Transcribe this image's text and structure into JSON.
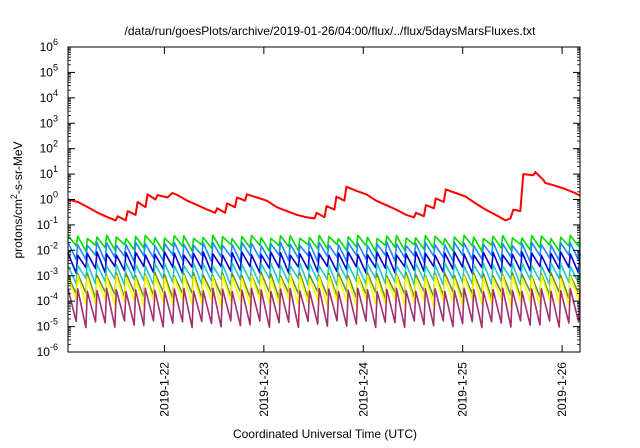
{
  "chart_data": {
    "type": "line",
    "title": "/data/run/goesPlots/archive/2019-01-26/04:00/flux/../flux/5daysMarsFluxes.txt",
    "xlabel": "Coordinated Universal Time (UTC)",
    "ylabel_base": "protons/cm",
    "ylabel_sup": "2",
    "ylabel_tail": "-s-sr-MeV",
    "xlim": [
      0,
      5.15
    ],
    "ylim_log10": [
      -6,
      6
    ],
    "yscale": "log",
    "y_ticks": [
      {
        "exp": -6,
        "label": "-6"
      },
      {
        "exp": -5,
        "label": "-5"
      },
      {
        "exp": -4,
        "label": "-4"
      },
      {
        "exp": -3,
        "label": "-3"
      },
      {
        "exp": -2,
        "label": "-2"
      },
      {
        "exp": -1,
        "label": "-1"
      },
      {
        "exp": 0,
        "label": "0"
      },
      {
        "exp": 1,
        "label": "1"
      },
      {
        "exp": 2,
        "label": "2"
      },
      {
        "exp": 3,
        "label": "3"
      },
      {
        "exp": 4,
        "label": "4"
      },
      {
        "exp": 5,
        "label": "5"
      },
      {
        "exp": 6,
        "label": "6"
      }
    ],
    "y_tick_base": "10",
    "x_ticks": [
      {
        "x": 0.97,
        "label": "2019-1-22"
      },
      {
        "x": 1.97,
        "label": "2019-1-23"
      },
      {
        "x": 2.97,
        "label": "2019-1-24"
      },
      {
        "x": 3.97,
        "label": "2019-1-25"
      },
      {
        "x": 4.97,
        "label": "2019-1-26"
      }
    ],
    "grid": false,
    "legend": "none",
    "series": [
      {
        "color": "#ff0000",
        "x": [
          0.0,
          0.1,
          0.2,
          0.3,
          0.4,
          0.48,
          0.5,
          0.58,
          0.6,
          0.68,
          0.7,
          0.78,
          0.8,
          0.88,
          0.9,
          1.0,
          1.05,
          1.1,
          1.2,
          1.3,
          1.4,
          1.48,
          1.5,
          1.58,
          1.6,
          1.68,
          1.7,
          1.78,
          1.8,
          1.9,
          2.0,
          2.1,
          2.2,
          2.3,
          2.4,
          2.48,
          2.5,
          2.58,
          2.6,
          2.68,
          2.7,
          2.78,
          2.8,
          2.9,
          3.0,
          3.1,
          3.2,
          3.3,
          3.4,
          3.48,
          3.5,
          3.58,
          3.6,
          3.68,
          3.7,
          3.78,
          3.8,
          3.9,
          4.0,
          4.1,
          4.2,
          4.3,
          4.4,
          4.45,
          4.48,
          4.55,
          4.58,
          4.68,
          4.7,
          4.78,
          4.8,
          4.9,
          5.0,
          5.1,
          5.15
        ],
        "y": [
          1.0,
          0.8,
          0.5,
          0.3,
          0.2,
          0.15,
          0.22,
          0.15,
          0.35,
          0.25,
          0.8,
          0.5,
          1.6,
          1.0,
          1.5,
          1.2,
          1.8,
          1.5,
          0.9,
          0.6,
          0.4,
          0.3,
          0.45,
          0.3,
          0.7,
          0.5,
          1.2,
          0.9,
          1.6,
          1.2,
          0.9,
          0.5,
          0.35,
          0.25,
          0.2,
          0.18,
          0.3,
          0.2,
          0.55,
          0.4,
          1.3,
          0.9,
          3.2,
          2.2,
          1.6,
          0.9,
          0.6,
          0.4,
          0.25,
          0.2,
          0.3,
          0.22,
          0.6,
          0.45,
          1.1,
          0.8,
          2.5,
          1.8,
          1.3,
          0.7,
          0.4,
          0.25,
          0.15,
          0.18,
          0.4,
          0.35,
          10.0,
          9.0,
          12.0,
          6.0,
          4.5,
          3.5,
          2.6,
          1.8,
          1.4
        ]
      },
      {
        "color": "#00dd00",
        "peak": 0.034,
        "min": 0.013,
        "trend": 0.0
      },
      {
        "color": "#1e88ff",
        "peak": 0.018,
        "min": 0.005,
        "trend": 0.0
      },
      {
        "color": "#0000cc",
        "peak": 0.0075,
        "min": 0.0018,
        "trend": 0.0
      },
      {
        "color": "#20c8c8",
        "peak": 0.0028,
        "min": 0.0006,
        "trend": 0.0
      },
      {
        "color": "#6a8e3a",
        "peak": 0.00115,
        "min": 0.00018,
        "trend": 0.0
      },
      {
        "color": "#ffff00",
        "peak": 0.0009,
        "min": 9e-05,
        "trend": 0.0
      },
      {
        "color": "#a0306e",
        "peak": 0.00028,
        "min": 1.3e-05,
        "trend": 0.0
      }
    ],
    "sawtooth_count": 53
  }
}
